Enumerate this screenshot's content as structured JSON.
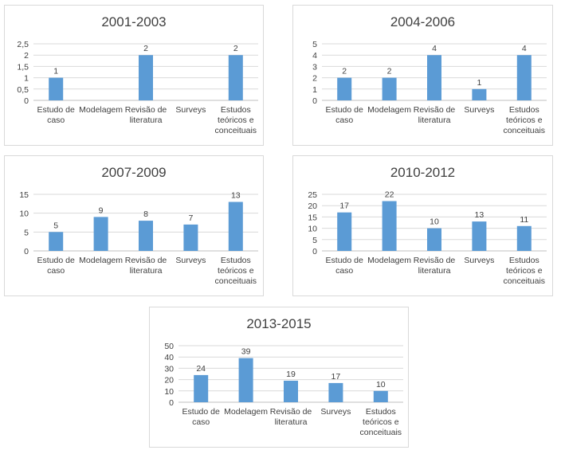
{
  "categories": [
    [
      "Estudo de",
      "caso"
    ],
    [
      "Modelagem"
    ],
    [
      "Revisão de",
      "literatura"
    ],
    [
      "Surveys"
    ],
    [
      "Estudos",
      "teóricos e",
      "conceituais"
    ]
  ],
  "colors": {
    "bar": "#5b9bd5",
    "panel_border": "#d9d9d9",
    "text": "#404040"
  },
  "chart_data": [
    {
      "type": "bar",
      "title": "2001-2003",
      "categories": [
        "Estudo de caso",
        "Modelagem",
        "Revisão de literatura",
        "Surveys",
        "Estudos teóricos e conceituais"
      ],
      "values": [
        1,
        null,
        2,
        null,
        2
      ],
      "data_labels": [
        "1",
        "",
        "2",
        "",
        "2"
      ],
      "ylim": [
        0,
        2.5
      ],
      "yticks": [
        "0",
        "0,5",
        "1",
        "1,5",
        "2",
        "2,5"
      ],
      "grid": true
    },
    {
      "type": "bar",
      "title": "2004-2006",
      "categories": [
        "Estudo de caso",
        "Modelagem",
        "Revisão de literatura",
        "Surveys",
        "Estudos teóricos e conceituais"
      ],
      "values": [
        2,
        2,
        4,
        1,
        4
      ],
      "data_labels": [
        "2",
        "2",
        "4",
        "1",
        "4"
      ],
      "ylim": [
        0,
        5
      ],
      "yticks": [
        "0",
        "1",
        "2",
        "3",
        "4",
        "5"
      ],
      "grid": true
    },
    {
      "type": "bar",
      "title": "2007-2009",
      "categories": [
        "Estudo de caso",
        "Modelagem",
        "Revisão de literatura",
        "Surveys",
        "Estudos teóricos e conceituais"
      ],
      "values": [
        5,
        9,
        8,
        7,
        13
      ],
      "data_labels": [
        "5",
        "9",
        "8",
        "7",
        "13"
      ],
      "ylim": [
        0,
        15
      ],
      "yticks": [
        "0",
        "5",
        "10",
        "15"
      ],
      "grid": true
    },
    {
      "type": "bar",
      "title": "2010-2012",
      "categories": [
        "Estudo de caso",
        "Modelagem",
        "Revisão de literatura",
        "Surveys",
        "Estudos teóricos e conceituais"
      ],
      "values": [
        17,
        22,
        10,
        13,
        11
      ],
      "data_labels": [
        "17",
        "22",
        "10",
        "13",
        "11"
      ],
      "ylim": [
        0,
        25
      ],
      "yticks": [
        "0",
        "5",
        "10",
        "15",
        "20",
        "25"
      ],
      "grid": true
    },
    {
      "type": "bar",
      "title": "2013-2015",
      "categories": [
        "Estudo de caso",
        "Modelagem",
        "Revisão de literatura",
        "Surveys",
        "Estudos teóricos e conceituais"
      ],
      "values": [
        24,
        39,
        19,
        17,
        10
      ],
      "data_labels": [
        "24",
        "39",
        "19",
        "17",
        "10"
      ],
      "ylim": [
        0,
        50
      ],
      "yticks": [
        "0",
        "10",
        "20",
        "30",
        "40",
        "50"
      ],
      "grid": true
    }
  ]
}
